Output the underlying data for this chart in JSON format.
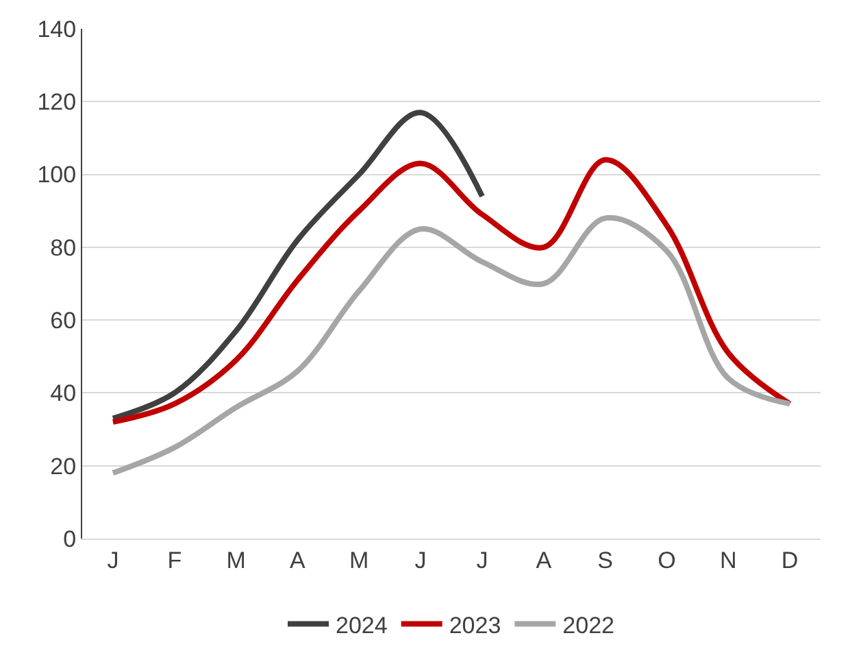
{
  "chart_data": {
    "type": "line",
    "categories": [
      "J",
      "F",
      "M",
      "A",
      "M",
      "J",
      "J",
      "A",
      "S",
      "O",
      "N",
      "D"
    ],
    "series": [
      {
        "name": "2024",
        "color": "#404040",
        "values": [
          33,
          40,
          57,
          82,
          100,
          117,
          94,
          null,
          null,
          null,
          null,
          null
        ]
      },
      {
        "name": "2023",
        "color": "#c00000",
        "values": [
          32,
          37,
          49,
          71,
          90,
          103,
          89,
          80,
          104,
          86,
          51,
          37
        ]
      },
      {
        "name": "2022",
        "color": "#a6a6a6",
        "values": [
          18,
          25,
          36,
          46,
          68,
          85,
          76,
          70,
          88,
          79,
          44,
          37
        ]
      }
    ],
    "ylim": [
      0,
      140
    ],
    "yticks": [
      0,
      20,
      40,
      60,
      80,
      100,
      120,
      140
    ],
    "grid": "y",
    "legend": "bottom",
    "marker": "none",
    "line_style": "solid"
  }
}
